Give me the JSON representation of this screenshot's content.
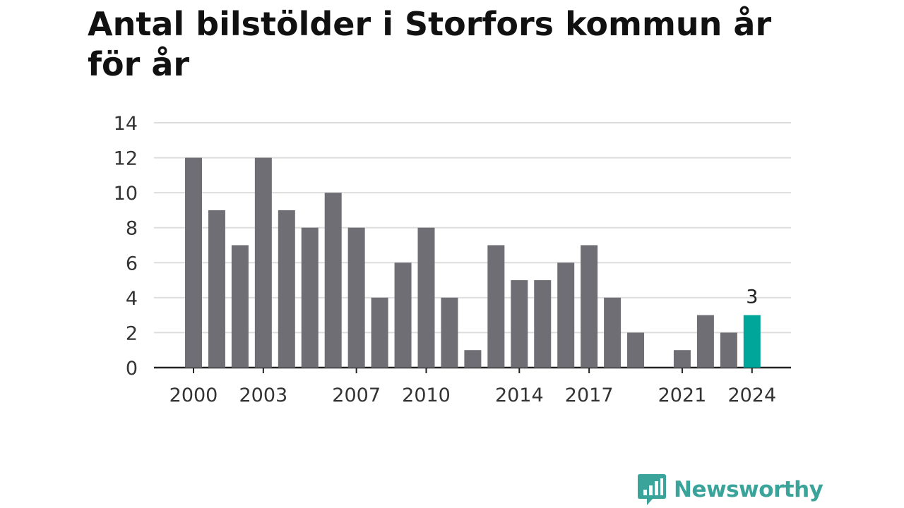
{
  "title": "Antal bilstölder i Storfors kommun år för år",
  "brand": {
    "name": "Newsworthy",
    "color": "#3aa39a",
    "icon": "bar-chart-speech-bubble-icon"
  },
  "colors": {
    "bar": "#6f6e74",
    "highlight": "#00a69a",
    "grid": "#dddddd",
    "axis": "#222222"
  },
  "chart_data": {
    "type": "bar",
    "title": "Antal bilstölder i Storfors kommun år för år",
    "xlabel": "",
    "ylabel": "",
    "categories": [
      "2000",
      "2001",
      "2002",
      "2003",
      "2004",
      "2005",
      "2006",
      "2007",
      "2008",
      "2009",
      "2010",
      "2011",
      "2012",
      "2013",
      "2014",
      "2015",
      "2016",
      "2017",
      "2018",
      "2019",
      "2020",
      "2021",
      "2022",
      "2023",
      "2024"
    ],
    "values": [
      12,
      9,
      7,
      12,
      9,
      8,
      10,
      8,
      4,
      6,
      8,
      4,
      1,
      7,
      5,
      5,
      6,
      7,
      4,
      2,
      0,
      1,
      3,
      2,
      3
    ],
    "x_tick_labels": [
      "2000",
      "2003",
      "2007",
      "2010",
      "2014",
      "2017",
      "2021",
      "2024"
    ],
    "y_ticks": [
      0,
      2,
      4,
      6,
      8,
      10,
      12,
      14
    ],
    "ylim": [
      0,
      14
    ],
    "grid": true,
    "highlight": {
      "category": "2024",
      "label": "3"
    }
  }
}
